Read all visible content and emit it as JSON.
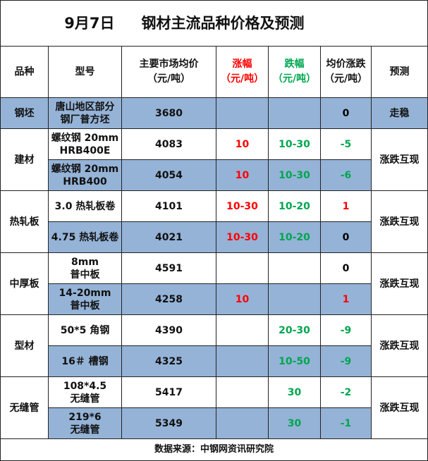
{
  "title": {
    "date": "9月7日",
    "main": "钢材主流品种价格及预测"
  },
  "headers": {
    "variety": "品种",
    "model": "型号",
    "avg_price_line1": "主要市场均价",
    "avg_price_line2": "（元/吨）",
    "rise_line1": "涨幅",
    "rise_line2": "（元/吨）",
    "fall_line1": "跌幅",
    "fall_line2": "（元/吨）",
    "change_line1": "均价涨跌",
    "change_line2": "（元/吨）",
    "forecast": "预测"
  },
  "rows": [
    {
      "category": "钢坯",
      "model1": "唐山地区部分",
      "model2": "钢厂普方坯",
      "price": "3680",
      "rise": "",
      "fall": "",
      "change": "0",
      "forecast": "走稳"
    },
    {
      "category": "建材",
      "model1": "螺纹钢 20mm",
      "model2": "HRB400E",
      "price": "4083",
      "rise": "10",
      "fall": "10-30",
      "change": "-5",
      "forecast": "涨跌互现"
    },
    {
      "model1": "螺纹钢 20mm",
      "model2": "HRB400",
      "price": "4054",
      "rise": "10",
      "fall": "10-30",
      "change": "-6"
    },
    {
      "category": "热轧板",
      "model1": "3.0 热轧板卷",
      "price": "4101",
      "rise": "10-30",
      "fall": "10-20",
      "change": "1",
      "forecast": "涨跌互现"
    },
    {
      "model1": "4.75 热轧板卷",
      "price": "4021",
      "rise": "10-30",
      "fall": "10-20",
      "change": "0"
    },
    {
      "category": "中厚板",
      "model1": "8mm",
      "model2": "普中板",
      "price": "4591",
      "rise": "",
      "fall": "",
      "change": "0",
      "forecast": "涨跌互现"
    },
    {
      "model1": "14-20mm",
      "model2": "普中板",
      "price": "4258",
      "rise": "10",
      "fall": "",
      "change": "1"
    },
    {
      "category": "型材",
      "model1": "50*5 角钢",
      "price": "4390",
      "rise": "",
      "fall": "20-30",
      "change": "-9",
      "forecast": "涨跌互现"
    },
    {
      "model1": "16＃ 槽钢",
      "price": "4325",
      "rise": "",
      "fall": "10-50",
      "change": "-9"
    },
    {
      "category": "无缝管",
      "model1": "108*4.5",
      "model2": "无缝管",
      "price": "5417",
      "rise": "",
      "fall": "30",
      "change": "-2",
      "forecast": "涨跌互现"
    },
    {
      "model1": "219*6",
      "model2": "无缝管",
      "price": "5349",
      "rise": "",
      "fall": "30",
      "change": "-1"
    }
  ],
  "footer": "数据来源：中钢网资讯研究院",
  "colors": {
    "row_highlight": "#95b3d7",
    "rise_text": "#ff0000",
    "fall_text": "#00a650"
  }
}
